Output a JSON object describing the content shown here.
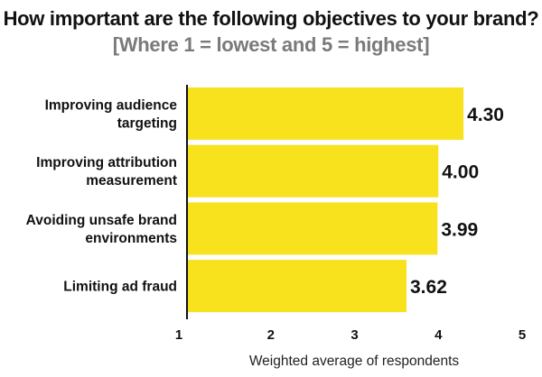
{
  "title": {
    "main": "How important are the following objectives to your brand?",
    "sub": "[Where 1 = lowest and 5 = highest]"
  },
  "chart_data": {
    "type": "bar",
    "orientation": "horizontal",
    "categories": [
      [
        "Improving audience",
        "targeting"
      ],
      [
        "Improving attribution",
        "measurement"
      ],
      [
        "Avoiding unsafe brand",
        "environments"
      ],
      [
        "Limiting ad fraud"
      ]
    ],
    "values": [
      4.3,
      4.0,
      3.99,
      3.62
    ],
    "value_labels": [
      "4.30",
      "4.00",
      "3.99",
      "3.62"
    ],
    "xlim": [
      1,
      5
    ],
    "xticks": [
      1,
      2,
      3,
      4,
      5
    ],
    "xlabel": "Weighted average of respondents",
    "bar_color": "#f7e21d",
    "grid": false
  }
}
